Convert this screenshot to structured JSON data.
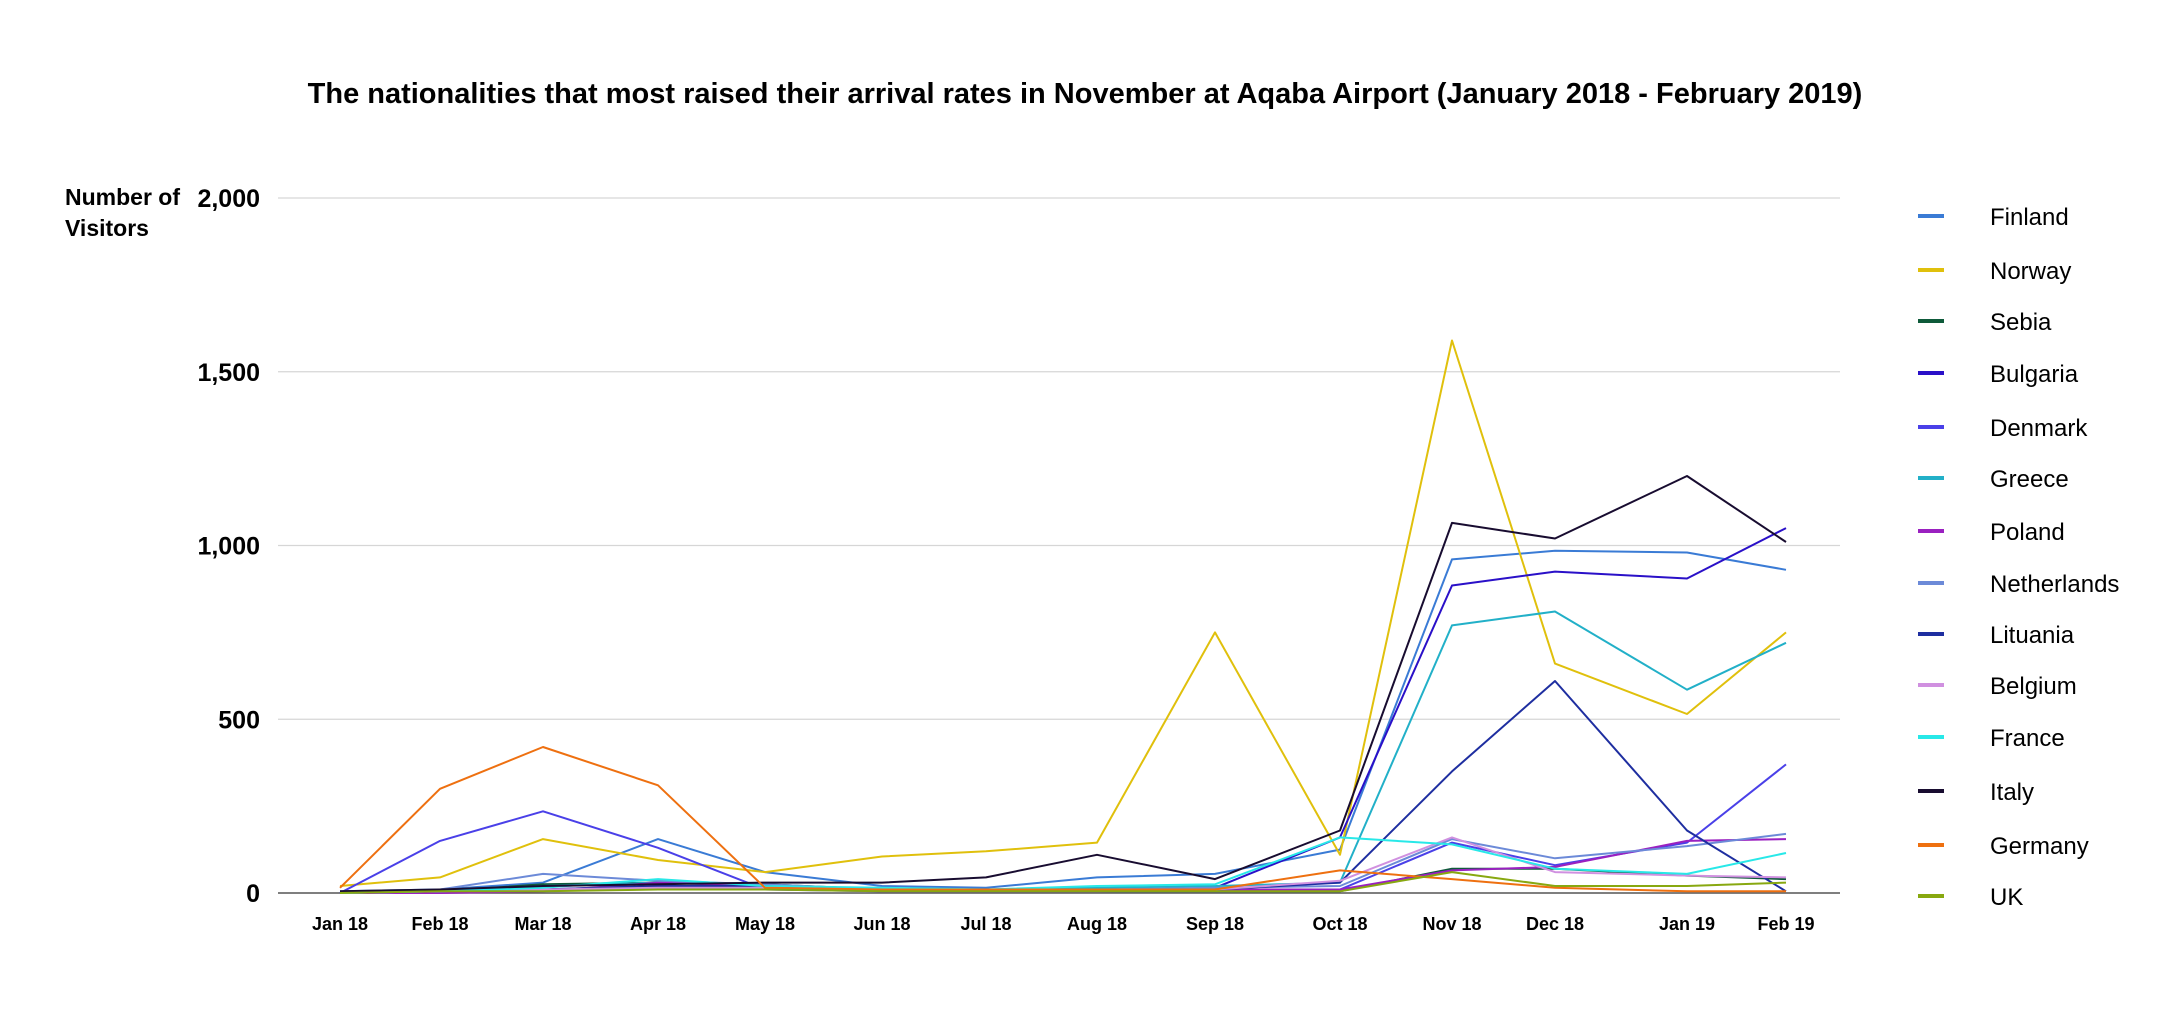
{
  "chart_data": {
    "type": "line",
    "title": "The nationalities that most raised their arrival rates in November at Aqaba Airport (January 2018 - February 2019)",
    "ylabel": "Number of Visitors",
    "xlabel": "",
    "ylim": [
      0,
      2000
    ],
    "yticks": [
      0,
      500,
      1000,
      1500,
      2000
    ],
    "ytick_labels": [
      "0",
      "500",
      "1,000",
      "1,500",
      "2,000"
    ],
    "grid": true,
    "legend_position": "right",
    "categories": [
      "Jan 18",
      "Feb 18",
      "Mar 18",
      "Apr 18",
      "May 18",
      "Jun 18",
      "Jul 18",
      "Aug 18",
      "Sep 18",
      "Oct 18",
      "Nov 18",
      "Dec 18",
      "Jan 19",
      "Feb 19"
    ],
    "series": [
      {
        "name": "Finland",
        "color": "#3a7bd5",
        "values": [
          5,
          10,
          30,
          155,
          60,
          20,
          15,
          45,
          55,
          125,
          960,
          985,
          980,
          930
        ]
      },
      {
        "name": "Norway",
        "color": "#e0c00c",
        "values": [
          20,
          45,
          155,
          95,
          60,
          105,
          120,
          145,
          750,
          110,
          1590,
          660,
          515,
          750
        ]
      },
      {
        "name": "Sebia",
        "color": "#0e5a3a",
        "values": [
          0,
          5,
          25,
          30,
          25,
          10,
          5,
          5,
          5,
          5,
          70,
          70,
          50,
          40
        ]
      },
      {
        "name": "Bulgaria",
        "color": "#2a10c8",
        "values": [
          0,
          5,
          10,
          20,
          15,
          5,
          5,
          5,
          15,
          160,
          885,
          925,
          905,
          1050
        ]
      },
      {
        "name": "Denmark",
        "color": "#4a40e8",
        "values": [
          0,
          150,
          235,
          130,
          10,
          5,
          5,
          5,
          5,
          10,
          145,
          80,
          145,
          370
        ]
      },
      {
        "name": "Greece",
        "color": "#22b0c8",
        "values": [
          0,
          5,
          20,
          30,
          20,
          10,
          10,
          15,
          20,
          30,
          770,
          810,
          585,
          720
        ]
      },
      {
        "name": "Poland",
        "color": "#9a20c0",
        "values": [
          0,
          0,
          5,
          30,
          20,
          5,
          5,
          5,
          10,
          10,
          65,
          75,
          150,
          155
        ]
      },
      {
        "name": "Netherlands",
        "color": "#6c8ad8",
        "values": [
          0,
          10,
          55,
          35,
          25,
          10,
          10,
          10,
          15,
          20,
          155,
          100,
          135,
          170
        ]
      },
      {
        "name": "Lituania",
        "color": "#1e2ea0",
        "values": [
          0,
          5,
          10,
          20,
          20,
          5,
          5,
          5,
          10,
          30,
          350,
          610,
          180,
          5
        ]
      },
      {
        "name": "Belgium",
        "color": "#d090e0",
        "values": [
          0,
          5,
          10,
          15,
          15,
          5,
          5,
          5,
          10,
          35,
          160,
          60,
          50,
          45
        ]
      },
      {
        "name": "France",
        "color": "#28e8e8",
        "values": [
          0,
          5,
          15,
          40,
          20,
          15,
          10,
          20,
          25,
          160,
          140,
          70,
          55,
          115
        ]
      },
      {
        "name": "Italy",
        "color": "#180c30",
        "values": [
          5,
          10,
          20,
          25,
          30,
          30,
          45,
          110,
          40,
          180,
          1065,
          1020,
          1200,
          1010
        ]
      },
      {
        "name": "Germany",
        "color": "#ee7010",
        "values": [
          15,
          300,
          420,
          310,
          15,
          10,
          10,
          10,
          10,
          65,
          40,
          15,
          5,
          5
        ]
      },
      {
        "name": "UK",
        "color": "#88a810",
        "values": [
          0,
          5,
          5,
          10,
          10,
          5,
          5,
          5,
          5,
          5,
          60,
          20,
          20,
          30
        ]
      }
    ]
  }
}
